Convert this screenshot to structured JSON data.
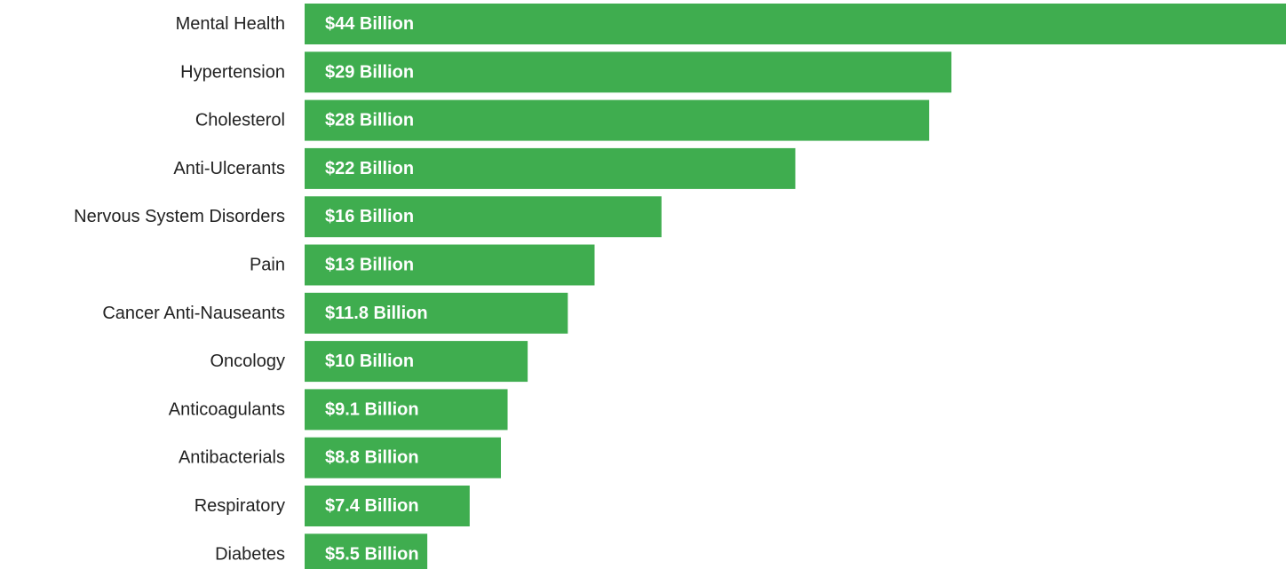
{
  "colors": {
    "bar": "#3fad4f",
    "category_text": "#222222",
    "value_text": "#ffffff",
    "background": "#ffffff"
  },
  "chart_data": {
    "type": "bar",
    "orientation": "horizontal",
    "title": "",
    "xlabel": "",
    "ylabel": "",
    "grid": false,
    "legend": "none",
    "xlim": [
      0,
      44
    ],
    "categories": [
      "Mental Health",
      "Hypertension",
      "Cholesterol",
      "Anti-Ulcerants",
      "Nervous System Disorders",
      "Pain",
      "Cancer Anti-Nauseants",
      "Oncology",
      "Anticoagulants",
      "Antibacterials",
      "Respiratory",
      "Diabetes"
    ],
    "values": [
      44,
      29,
      28,
      22,
      16,
      13,
      11.8,
      10,
      9.1,
      8.8,
      7.4,
      5.5
    ],
    "value_labels": [
      "$44 Billion",
      "$29 Billion",
      "$28 Billion",
      "$22 Billion",
      "$16 Billion",
      "$13 Billion",
      "$11.8 Billion",
      "$10 Billion",
      "$9.1 Billion",
      "$8.8 Billion",
      "$7.4 Billion",
      "$5.5 Billion"
    ]
  }
}
